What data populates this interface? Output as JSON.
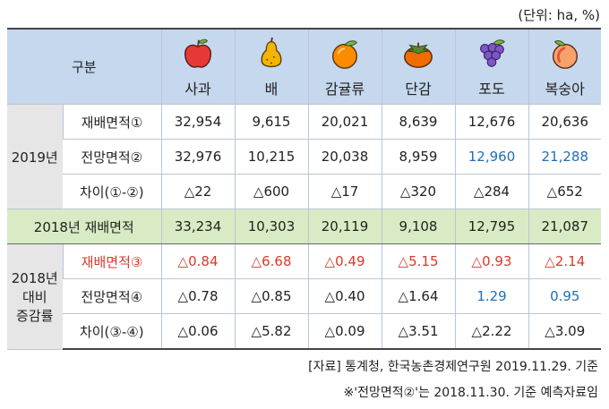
{
  "unit": "(단위: ha, %)",
  "header": {
    "category_label": "구분",
    "fruits": [
      {
        "label": "사과",
        "icon": "apple-icon"
      },
      {
        "label": "배",
        "icon": "pear-icon"
      },
      {
        "label": "감귤류",
        "icon": "tangerine-icon"
      },
      {
        "label": "단감",
        "icon": "persimmon-icon"
      },
      {
        "label": "포도",
        "icon": "grapes-icon"
      },
      {
        "label": "복숭아",
        "icon": "peach-icon"
      }
    ]
  },
  "group2019": {
    "label": "2019년",
    "rows": [
      {
        "label": "재배면적①",
        "values": [
          "32,954",
          "9,615",
          "20,021",
          "8,639",
          "12,676",
          "20,636"
        ]
      },
      {
        "label": "전망면적②",
        "values": [
          "32,976",
          "10,215",
          "20,038",
          "8,959",
          "12,960",
          "21,288"
        ]
      },
      {
        "label": "차이(①-②)",
        "values": [
          "△22",
          "△600",
          "△17",
          "△320",
          "△284",
          "△652"
        ]
      }
    ]
  },
  "total2018": {
    "label": "2018년 재배면적",
    "values": [
      "33,234",
      "10,303",
      "20,119",
      "9,108",
      "12,795",
      "21,087"
    ]
  },
  "groupRate": {
    "label_lines": [
      "2018년",
      "대비",
      "증감률"
    ],
    "rows": [
      {
        "label": "재배면적③",
        "values": [
          "△0.84",
          "△6.68",
          "△0.49",
          "△5.15",
          "△0.93",
          "△2.14"
        ]
      },
      {
        "label": "전망면적④",
        "values": [
          "△0.78",
          "△0.85",
          "△0.40",
          "△1.64",
          "1.29",
          "0.95"
        ]
      },
      {
        "label": "차이(③-④)",
        "values": [
          "△0.06",
          "△5.82",
          "△0.09",
          "△3.51",
          "△2.22",
          "△3.09"
        ]
      }
    ]
  },
  "notes": {
    "source": "[자료] 통계청, 한국농촌경제연구원 2019.11.29. 기준",
    "remark": "※'전망면적②'는 2018.11.30. 기준 예측자료임"
  },
  "colors": {
    "header_bg": "#c5d8ed",
    "row_head_bg": "#e6e6e6",
    "total_bg": "#d8ebc4",
    "red_text": "#d9392c",
    "blue_text": "#1f6fb7"
  }
}
